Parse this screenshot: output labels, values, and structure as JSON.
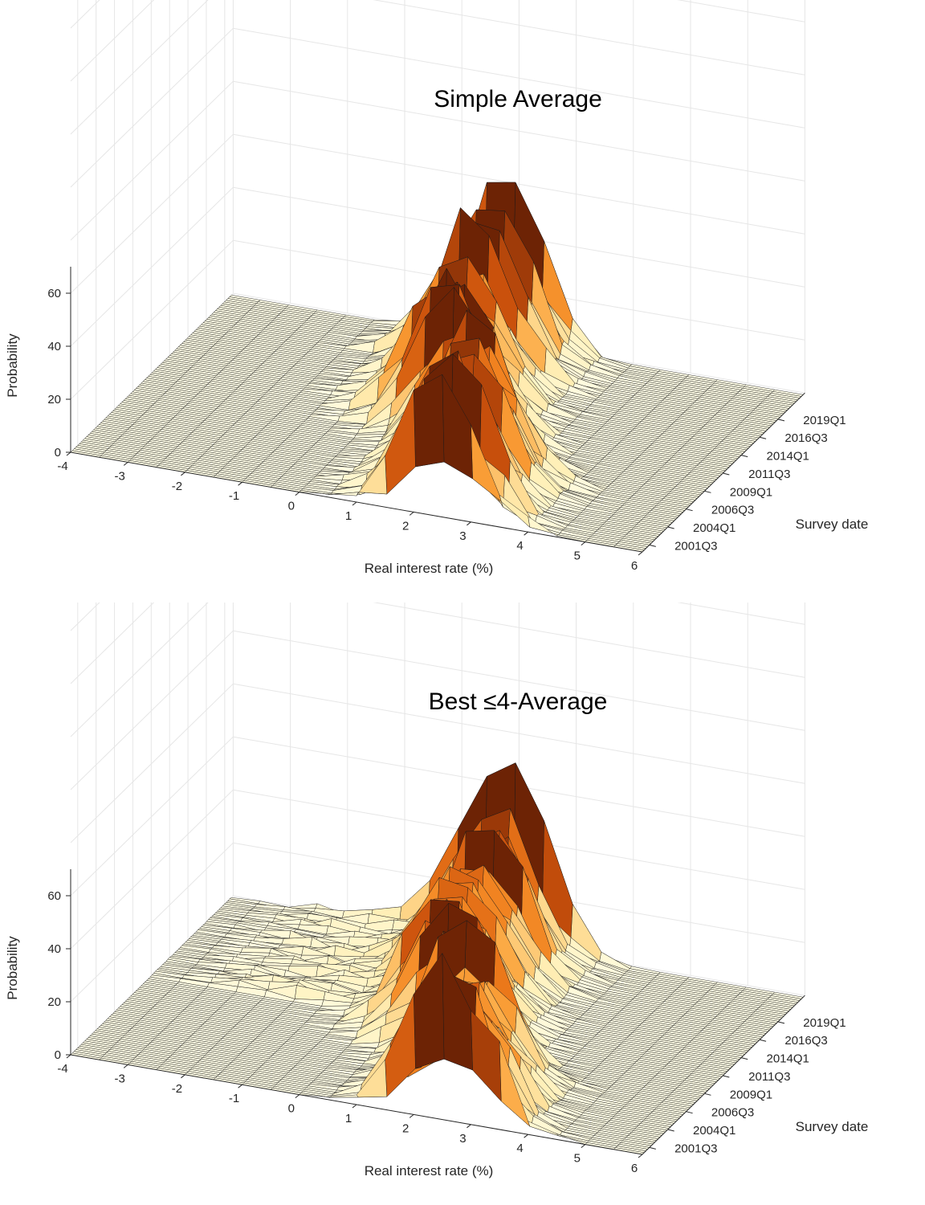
{
  "chart_data": [
    {
      "type": "surface",
      "title": "Simple Average",
      "xlabel": "Real interest rate (%)",
      "ylabel": "Survey date",
      "zlabel": "Probability",
      "xlim": [
        -4,
        6
      ],
      "zlim": [
        0,
        70
      ],
      "x_ticks": [
        "-4",
        "-3",
        "-2",
        "-1",
        "0",
        "1",
        "2",
        "3",
        "4",
        "5",
        "6"
      ],
      "y_ticks": [
        "2001Q3",
        "2004Q1",
        "2006Q3",
        "2009Q1",
        "2011Q3",
        "2014Q1",
        "2016Q3",
        "2019Q1"
      ],
      "z_ticks": [
        "0",
        "20",
        "40",
        "60"
      ],
      "colormap": [
        "#fffde6",
        "#fff0b8",
        "#fed68a",
        "#fba43c",
        "#ef7d1c",
        "#c9500c",
        "#6d2305"
      ],
      "grid": true,
      "peak_ridge": [
        {
          "survey": "2001Q3",
          "peak_x": 2.5,
          "peak_z": 45
        },
        {
          "survey": "2004Q1",
          "peak_x": 2.3,
          "peak_z": 50
        },
        {
          "survey": "2006Q3",
          "peak_x": 2.4,
          "peak_z": 50
        },
        {
          "survey": "2009Q1",
          "peak_x": 1.5,
          "peak_z": 52
        },
        {
          "survey": "2011Q3",
          "peak_x": 1.0,
          "peak_z": 45
        },
        {
          "survey": "2014Q1",
          "peak_x": 0.8,
          "peak_z": 46
        },
        {
          "survey": "2016Q3",
          "peak_x": 0.7,
          "peak_z": 50
        },
        {
          "survey": "2019Q1",
          "peak_x": 0.8,
          "peak_z": 58
        }
      ]
    },
    {
      "type": "surface",
      "title": "Best ≤4-Average",
      "xlabel": "Real interest rate (%)",
      "ylabel": "Survey date",
      "zlabel": "Probability",
      "xlim": [
        -4,
        6
      ],
      "zlim": [
        0,
        70
      ],
      "x_ticks": [
        "-4",
        "-3",
        "-2",
        "-1",
        "0",
        "1",
        "2",
        "3",
        "4",
        "5",
        "6"
      ],
      "y_ticks": [
        "2001Q3",
        "2004Q1",
        "2006Q3",
        "2009Q1",
        "2011Q3",
        "2014Q1",
        "2016Q3",
        "2019Q1"
      ],
      "z_ticks": [
        "0",
        "20",
        "40",
        "60"
      ],
      "colormap": [
        "#fffde6",
        "#fff0b8",
        "#fed68a",
        "#fba43c",
        "#ef7d1c",
        "#c9500c",
        "#6d2305"
      ],
      "grid": true,
      "peak_ridge": [
        {
          "survey": "2001Q3",
          "peak_x": 2.6,
          "peak_z": 52
        },
        {
          "survey": "2004Q1",
          "peak_x": 2.5,
          "peak_z": 40
        },
        {
          "survey": "2006Q3",
          "peak_x": 2.3,
          "peak_z": 45
        },
        {
          "survey": "2009Q1",
          "peak_x": 1.3,
          "peak_z": 48
        },
        {
          "survey": "2011Q3",
          "peak_x": 1.0,
          "peak_z": 38
        },
        {
          "survey": "2014Q1",
          "peak_x": 0.8,
          "peak_z": 40
        },
        {
          "survey": "2016Q3",
          "peak_x": 0.9,
          "peak_z": 45
        },
        {
          "survey": "2019Q1",
          "peak_x": 0.8,
          "peak_z": 60
        }
      ]
    }
  ]
}
